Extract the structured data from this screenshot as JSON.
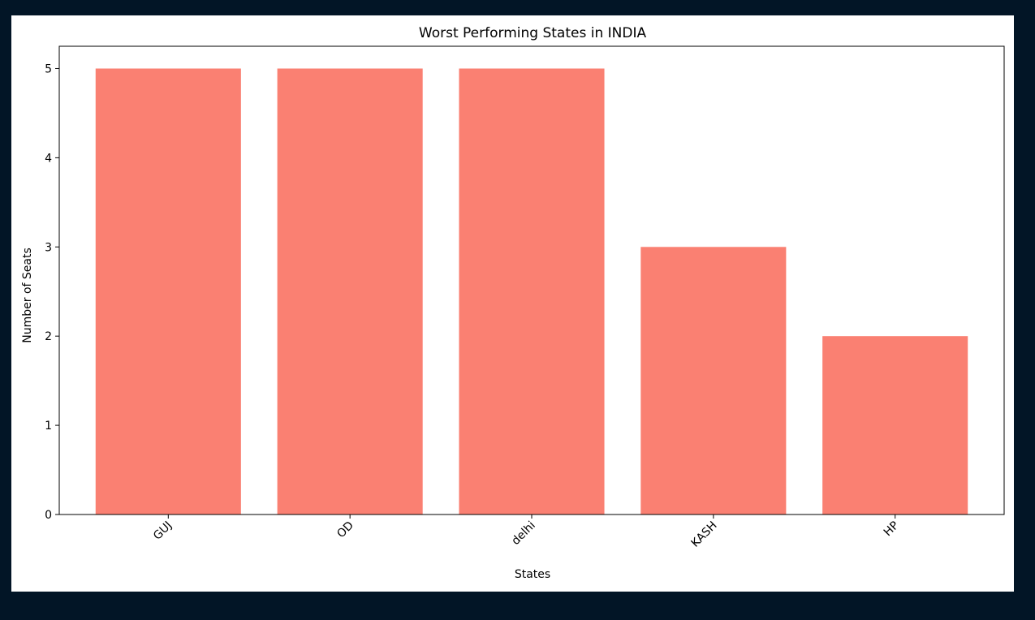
{
  "colors": {
    "page_background": "#021526",
    "plot_background": "#ffffff",
    "bar": "#fa8072"
  },
  "chart_data": {
    "type": "bar",
    "title": "Worst Performing States in INDIA",
    "xlabel": "States",
    "ylabel": "Number of Seats",
    "categories": [
      "GUJ",
      "OD",
      "delhi",
      "KASH",
      "HP"
    ],
    "values": [
      5,
      5,
      5,
      3,
      2
    ],
    "ylim": [
      0,
      5.25
    ],
    "yticks": [
      0,
      1,
      2,
      3,
      4,
      5
    ],
    "xtick_rotation_deg": 45,
    "grid": false,
    "legend": "none"
  }
}
